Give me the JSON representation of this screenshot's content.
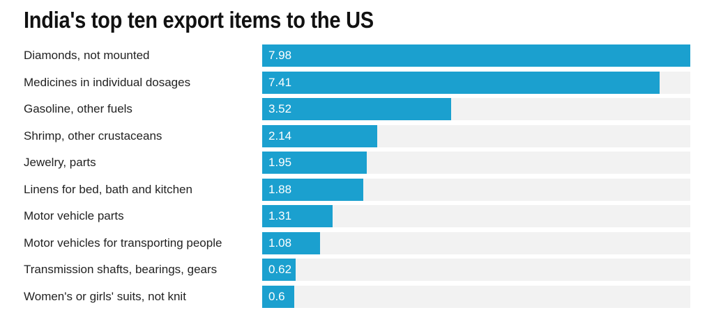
{
  "chart_data": {
    "type": "bar",
    "orientation": "horizontal",
    "title": "India's top ten export items to the US",
    "xlabel": "",
    "ylabel": "",
    "xlim": [
      0,
      7.98
    ],
    "grid": false,
    "colors": {
      "bar": "#1ba0cf",
      "track": "#f2f2f2"
    },
    "categories": [
      "Diamonds, not mounted",
      "Medicines in individual dosages",
      "Gasoline, other fuels",
      "Shrimp, other crustaceans",
      "Jewelry, parts",
      "Linens for bed, bath and kitchen",
      "Motor vehicle parts",
      "Motor vehicles for transporting people",
      "Transmission shafts, bearings, gears",
      "Women's or girls' suits, not knit"
    ],
    "values": [
      7.98,
      7.41,
      3.52,
      2.14,
      1.95,
      1.88,
      1.31,
      1.08,
      0.62,
      0.6
    ],
    "value_labels": [
      "7.98",
      "7.41",
      "3.52",
      "2.14",
      "1.95",
      "1.88",
      "1.31",
      "1.08",
      "0.62",
      "0.6"
    ]
  }
}
